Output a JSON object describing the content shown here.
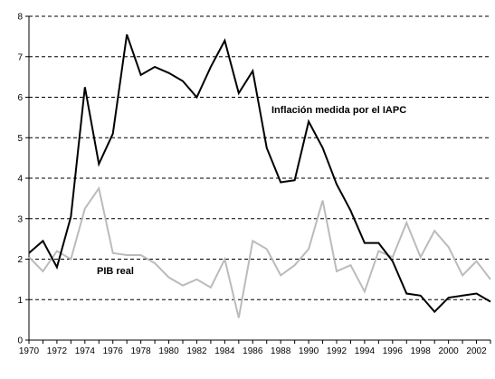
{
  "chart_data": {
    "type": "line",
    "title": "",
    "xlabel": "",
    "ylabel": "",
    "xlim": [
      1970,
      2003
    ],
    "ylim": [
      0,
      8
    ],
    "y_ticks": [
      0,
      1,
      2,
      3,
      4,
      5,
      6,
      7,
      8
    ],
    "x_ticks": [
      1970,
      1972,
      1974,
      1976,
      1978,
      1980,
      1982,
      1984,
      1986,
      1988,
      1990,
      1992,
      1994,
      1996,
      1998,
      2000,
      2002
    ],
    "y_tick_labels": [
      "0",
      "1",
      "2",
      "3",
      "4",
      "5",
      "6",
      "7",
      "8"
    ],
    "x_tick_labels": [
      "1970",
      "1972",
      "1974",
      "1976",
      "1978",
      "1980",
      "1982",
      "1984",
      "1986",
      "1988",
      "1990",
      "1992",
      "1994",
      "1996",
      "1998",
      "2000",
      "2002"
    ],
    "grid": "horizontal dashed",
    "legend": "none",
    "x": [
      1970,
      1971,
      1972,
      1973,
      1974,
      1975,
      1976,
      1977,
      1978,
      1979,
      1980,
      1981,
      1982,
      1983,
      1984,
      1985,
      1986,
      1987,
      1988,
      1989,
      1990,
      1991,
      1992,
      1993,
      1994,
      1995,
      1996,
      1997,
      1998,
      1999,
      2000,
      2001,
      2002,
      2003
    ],
    "series": [
      {
        "name": "Inflación medida por el IAPC",
        "color": "#000000",
        "values": [
          2.15,
          2.45,
          1.8,
          3.05,
          6.25,
          4.35,
          5.1,
          7.55,
          6.55,
          6.75,
          6.6,
          6.4,
          6.0,
          6.75,
          7.4,
          6.1,
          6.65,
          4.75,
          3.9,
          3.95,
          5.4,
          4.75,
          3.85,
          3.2,
          2.4,
          2.4,
          1.95,
          1.15,
          1.1,
          0.7,
          1.05,
          1.1,
          1.15,
          0.95
        ]
      },
      {
        "name": "PIB real",
        "color": "#bbbbbb",
        "values": [
          2.05,
          1.7,
          2.2,
          2.0,
          3.25,
          3.75,
          2.15,
          2.1,
          2.1,
          1.9,
          1.55,
          1.35,
          1.5,
          1.3,
          2.0,
          0.55,
          2.45,
          2.25,
          1.6,
          1.85,
          2.25,
          3.45,
          1.7,
          1.85,
          1.2,
          2.2,
          2.05,
          2.9,
          2.05,
          2.7,
          2.3,
          1.6,
          1.95,
          1.5
        ]
      }
    ]
  }
}
